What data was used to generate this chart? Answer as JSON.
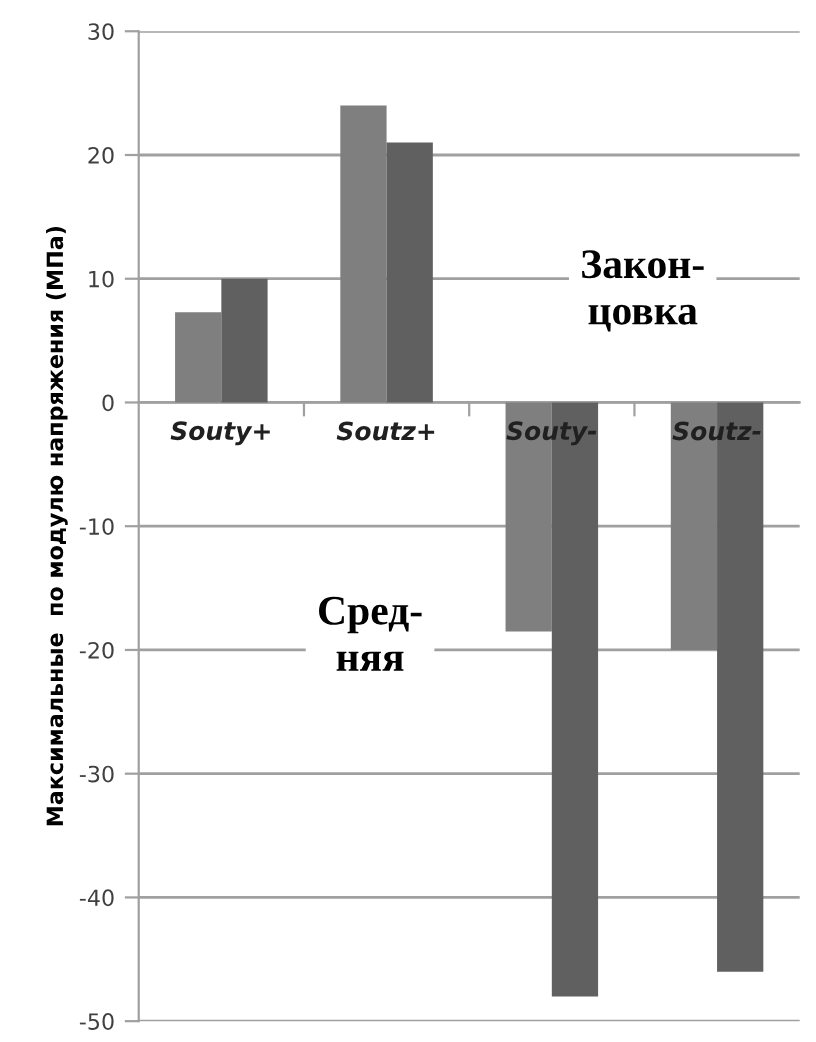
{
  "chart_data": {
    "type": "bar",
    "ylabel": "Максимальные  по модулю напряжения (МПа)",
    "categories": [
      "Souty+",
      "Soutz+",
      "Souty-",
      "Soutz-"
    ],
    "series": [
      {
        "color": "#7f7f7f",
        "values": [
          7.3,
          24,
          -18.5,
          -20
        ]
      },
      {
        "color": "#606060",
        "values": [
          10,
          21,
          -48,
          -46
        ]
      }
    ],
    "ylim": [
      -50,
      30
    ],
    "yticks": [
      -50,
      -40,
      -30,
      -20,
      -10,
      0,
      10,
      20,
      30
    ],
    "grid": "y",
    "annotations": [
      "Закон-\nцовка",
      "Сред-\nняя"
    ]
  }
}
